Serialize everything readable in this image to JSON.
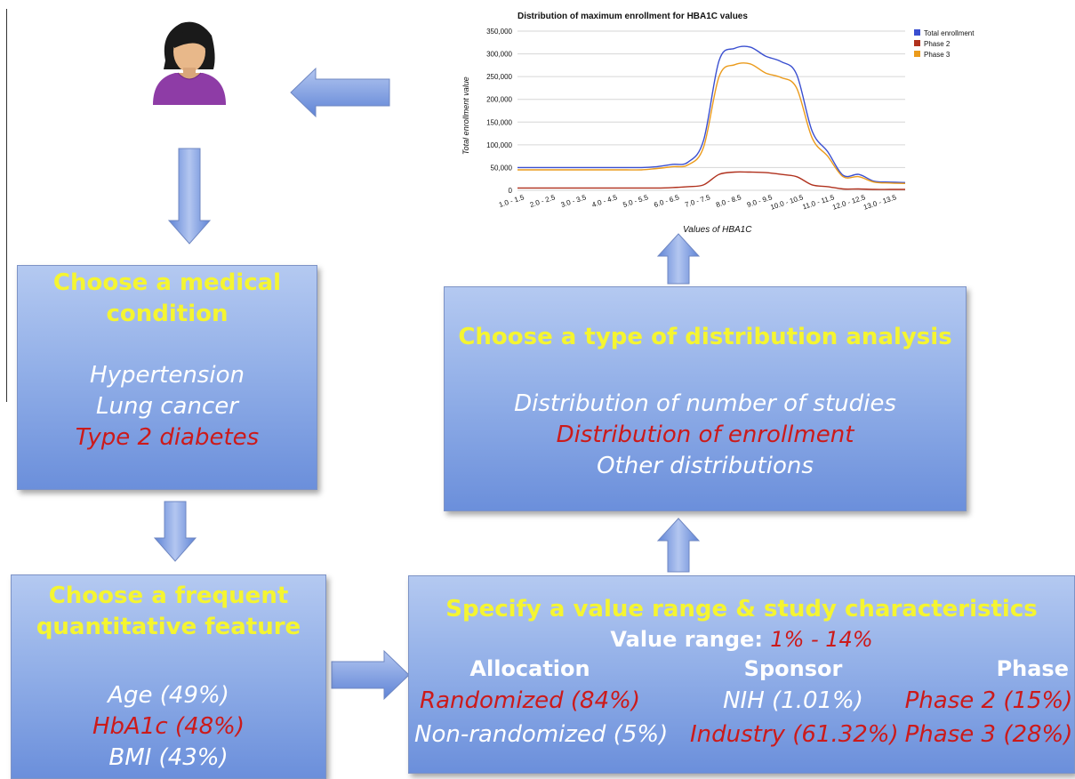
{
  "box_condition": {
    "title_line1": "Choose a medical",
    "title_line2": "condition",
    "items": [
      {
        "text": "Hypertension",
        "highlight": false
      },
      {
        "text": "Lung cancer",
        "highlight": false
      },
      {
        "text": "Type 2 diabetes",
        "highlight": true
      }
    ]
  },
  "box_feature": {
    "title_line1": "Choose a frequent",
    "title_line2": "quantitative feature",
    "items": [
      {
        "text": "Age (49%)",
        "highlight": false
      },
      {
        "text": "HbA1c (48%)",
        "highlight": true
      },
      {
        "text": "BMI (43%)",
        "highlight": false
      }
    ]
  },
  "box_distribution": {
    "title": "Choose a type of distribution analysis",
    "items": [
      {
        "text": "Distribution of number of studies",
        "highlight": false
      },
      {
        "text": "Distribution of enrollment",
        "highlight": true
      },
      {
        "text": "Other distributions",
        "highlight": false
      }
    ]
  },
  "box_specify": {
    "title": "Specify a value range & study characteristics",
    "range_label": "Value range: ",
    "range_value": "1% - 14%",
    "columns": [
      {
        "header": "Allocation",
        "values": [
          {
            "text": "Randomized (84%)",
            "highlight": true
          },
          {
            "text": "Non-randomized (5%)",
            "highlight": false
          }
        ]
      },
      {
        "header": "Sponsor",
        "values": [
          {
            "text": "NIH (1.01%)",
            "highlight": false
          },
          {
            "text": "Industry (61.32%)",
            "highlight": true
          }
        ]
      },
      {
        "header": "Phase",
        "values": [
          {
            "text": "Phase 2 (15%)",
            "highlight": true
          },
          {
            "text": "Phase 3 (28%)",
            "highlight": true
          }
        ]
      }
    ]
  },
  "colors": {
    "box_title": "#f5f531",
    "highlight": "#cc1a1a",
    "arrow": "#7d9ce0",
    "total": "#3a4fd0",
    "phase2": "#b0311d",
    "phase3": "#eb9b1c"
  },
  "icons": {
    "user": "user-icon"
  },
  "chart_data": {
    "type": "line",
    "title": "Distribution of maximum enrollment for HBA1C values",
    "xlabel": "Values of HBA1C",
    "ylabel": "Total enrollment value",
    "ylim": [
      0,
      350000
    ],
    "y_ticks": [
      "350,000",
      "300,000",
      "250,000",
      "200,000",
      "150,000",
      "100,000",
      "50,000",
      "0"
    ],
    "categories": [
      "1.0 - 1.5",
      "2.0 - 2.5",
      "3.0 - 3.5",
      "4.0 - 4.5",
      "5.0 - 5.5",
      "6.0 - 6.5",
      "7.0 - 7.5",
      "8.0 - 8.5",
      "9.0 - 9.5",
      "10.0 - 10.5",
      "11.0 - 11.5",
      "12.0 - 12.5",
      "13.0 - 13.5"
    ],
    "series": [
      {
        "name": "Total enrollment",
        "x": [
          1.0,
          1.5,
          2.0,
          2.5,
          3.0,
          3.5,
          4.0,
          4.5,
          5.0,
          5.5,
          6.0,
          6.5,
          7.0,
          7.5,
          8.0,
          8.5,
          9.0,
          9.5,
          10.0,
          10.5,
          11.0,
          11.5,
          12.0,
          12.5,
          13.0,
          13.5
        ],
        "values": [
          50000,
          50000,
          50000,
          50000,
          50000,
          50000,
          50000,
          50000,
          50000,
          52000,
          57000,
          62000,
          110000,
          285000,
          312000,
          315000,
          295000,
          283000,
          255000,
          130000,
          85000,
          33000,
          35000,
          20000,
          18000,
          17000
        ]
      },
      {
        "name": "Phase 2",
        "x": [
          1.0,
          1.5,
          2.0,
          2.5,
          3.0,
          3.5,
          4.0,
          4.5,
          5.0,
          5.5,
          6.0,
          6.5,
          7.0,
          7.5,
          8.0,
          8.5,
          9.0,
          9.5,
          10.0,
          10.5,
          11.0,
          11.5,
          12.0,
          12.5,
          13.0,
          13.5
        ],
        "values": [
          5000,
          5000,
          5000,
          5000,
          5000,
          5000,
          5000,
          5000,
          5000,
          5000,
          6000,
          8000,
          12000,
          35000,
          40000,
          40000,
          39000,
          35000,
          30000,
          12000,
          8000,
          3000,
          3000,
          2000,
          2000,
          2000
        ]
      },
      {
        "name": "Phase 3",
        "x": [
          1.0,
          1.5,
          2.0,
          2.5,
          3.0,
          3.5,
          4.0,
          4.5,
          5.0,
          5.5,
          6.0,
          6.5,
          7.0,
          7.5,
          8.0,
          8.5,
          9.0,
          9.5,
          10.0,
          10.5,
          11.0,
          11.5,
          12.0,
          12.5,
          13.0,
          13.5
        ],
        "values": [
          45000,
          45000,
          45000,
          45000,
          45000,
          45000,
          45000,
          45000,
          45000,
          48000,
          52000,
          56000,
          95000,
          250000,
          276000,
          278000,
          258000,
          248000,
          225000,
          115000,
          75000,
          30000,
          30000,
          18000,
          16000,
          15000
        ]
      }
    ],
    "legend": "top-right",
    "grid": true
  }
}
